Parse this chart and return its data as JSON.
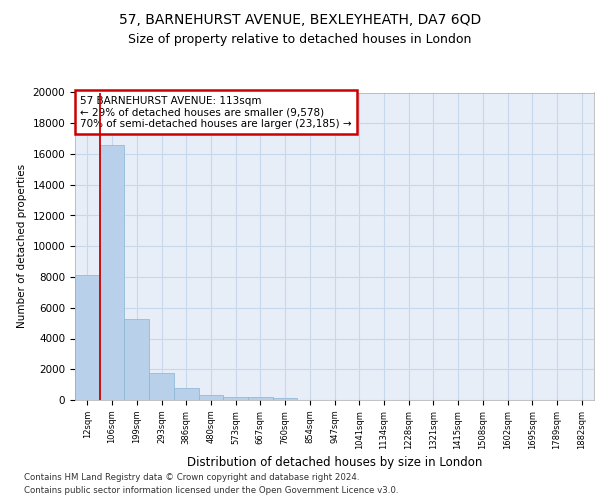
{
  "title1": "57, BARNEHURST AVENUE, BEXLEYHEATH, DA7 6QD",
  "title2": "Size of property relative to detached houses in London",
  "xlabel": "Distribution of detached houses by size in London",
  "ylabel": "Number of detached properties",
  "categories": [
    "12sqm",
    "106sqm",
    "199sqm",
    "293sqm",
    "386sqm",
    "480sqm",
    "573sqm",
    "667sqm",
    "760sqm",
    "854sqm",
    "947sqm",
    "1041sqm",
    "1134sqm",
    "1228sqm",
    "1321sqm",
    "1415sqm",
    "1508sqm",
    "1602sqm",
    "1695sqm",
    "1789sqm",
    "1882sqm"
  ],
  "values": [
    8100,
    16600,
    5300,
    1750,
    750,
    330,
    200,
    170,
    130,
    0,
    0,
    0,
    0,
    0,
    0,
    0,
    0,
    0,
    0,
    0,
    0
  ],
  "bar_color": "#b8d0ea",
  "bar_edge_color": "#8ab4d8",
  "vline_color": "#cc0000",
  "annotation_line1": "57 BARNEHURST AVENUE: 113sqm",
  "annotation_line2": "← 29% of detached houses are smaller (9,578)",
  "annotation_line3": "70% of semi-detached houses are larger (23,185) →",
  "annotation_box_color": "#cc0000",
  "ylim": [
    0,
    20000
  ],
  "yticks": [
    0,
    2000,
    4000,
    6000,
    8000,
    10000,
    12000,
    14000,
    16000,
    18000,
    20000
  ],
  "grid_color": "#c8d8ec",
  "bg_color": "#e8eef8",
  "footer1": "Contains HM Land Registry data © Crown copyright and database right 2024.",
  "footer2": "Contains public sector information licensed under the Open Government Licence v3.0."
}
